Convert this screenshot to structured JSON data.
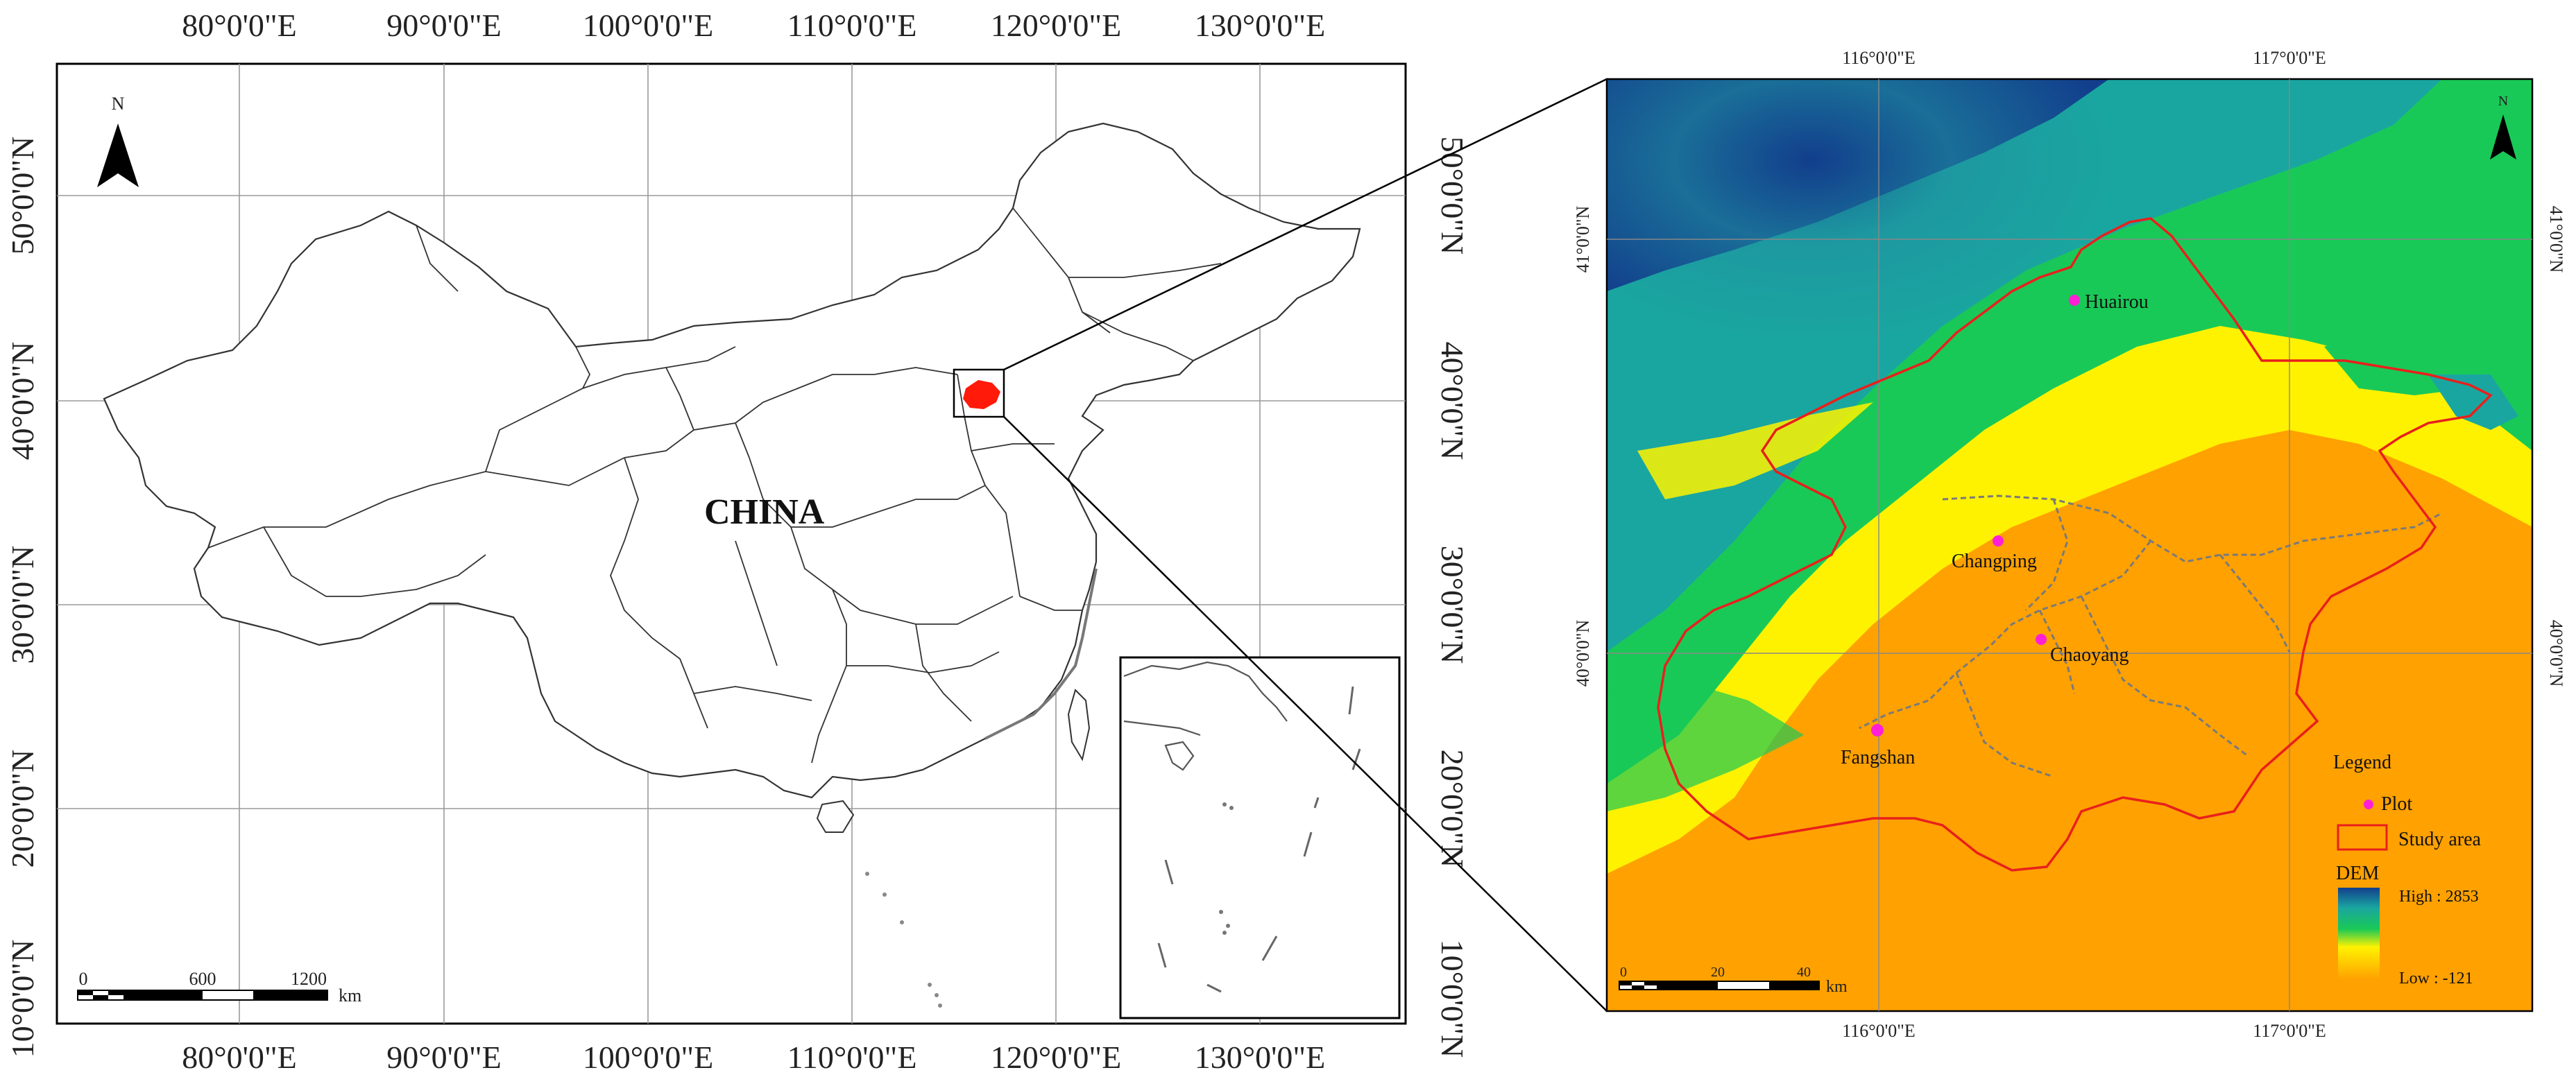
{
  "left_map": {
    "country_label": "CHINA",
    "north_label": "N",
    "lon_ticks": [
      "80°0'0\"E",
      "90°0'0\"E",
      "100°0'0\"E",
      "110°0'0\"E",
      "120°0'0\"E",
      "130°0'0\"E"
    ],
    "lat_ticks": [
      "50°0'0\"N",
      "40°0'0\"N",
      "30°0'0\"N",
      "20°0'0\"N",
      "10°0'0\"N"
    ],
    "scale": {
      "labels": [
        "0",
        "600",
        "1200"
      ],
      "unit": "km"
    }
  },
  "right_map": {
    "north_label": "N",
    "lon_ticks": [
      "116°0'0\"E",
      "117°0'0\"E"
    ],
    "lat_ticks": [
      "41°0'0\"N",
      "40°0'0\"N"
    ],
    "places": [
      "Huairou",
      "Changping",
      "Chaoyang",
      "Fangshan"
    ],
    "legend": {
      "title": "Legend",
      "plot_label": "Plot",
      "study_area_label": "Study area",
      "dem_title": "DEM",
      "dem_high": "High : 2853",
      "dem_low": "Low : -121"
    },
    "scale": {
      "labels": [
        "0",
        "20",
        "40"
      ],
      "unit": "km"
    },
    "colors": {
      "plot": "#ff1fd6",
      "study_area": "#e8201c",
      "dem_high": "#123e8c",
      "dem_mid": "#19c957",
      "dem_low": "#ffa100"
    }
  }
}
